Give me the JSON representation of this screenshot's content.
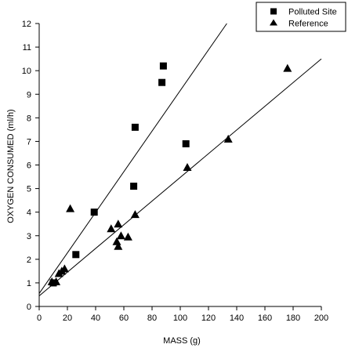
{
  "chart_data": {
    "type": "scatter",
    "title": "",
    "xlabel": "MASS (g)",
    "ylabel": "OXYGEN CONSUMED (ml/h)",
    "xlim": [
      0,
      200
    ],
    "ylim": [
      0,
      12
    ],
    "x_ticks": [
      0,
      20,
      40,
      60,
      80,
      100,
      120,
      140,
      160,
      180,
      200
    ],
    "y_ticks": [
      0,
      1,
      2,
      3,
      4,
      5,
      6,
      7,
      8,
      9,
      10,
      11,
      12
    ],
    "grid": false,
    "legend_position": "top-right",
    "series": [
      {
        "name": "Polluted Site",
        "marker": "square",
        "color": "#000000",
        "points": [
          [
            10,
            1.0
          ],
          [
            26,
            2.2
          ],
          [
            39,
            4.0
          ],
          [
            67,
            5.1
          ],
          [
            68,
            7.6
          ],
          [
            87,
            9.5
          ],
          [
            88,
            10.2
          ],
          [
            104,
            6.9
          ]
        ],
        "fit_line": [
          [
            0,
            0.55
          ],
          [
            133,
            12.0
          ]
        ]
      },
      {
        "name": "Reference",
        "marker": "triangle",
        "color": "#000000",
        "points": [
          [
            9,
            1.05
          ],
          [
            12,
            1.05
          ],
          [
            14,
            1.4
          ],
          [
            16,
            1.5
          ],
          [
            18,
            1.6
          ],
          [
            22,
            4.15
          ],
          [
            51,
            3.3
          ],
          [
            55,
            2.75
          ],
          [
            56,
            3.5
          ],
          [
            56,
            2.55
          ],
          [
            58,
            3.0
          ],
          [
            63,
            2.95
          ],
          [
            68,
            3.9
          ],
          [
            105,
            5.9
          ],
          [
            134,
            7.1
          ],
          [
            176,
            10.1
          ]
        ],
        "fit_line": [
          [
            0,
            0.45
          ],
          [
            200,
            10.5
          ]
        ]
      }
    ]
  }
}
